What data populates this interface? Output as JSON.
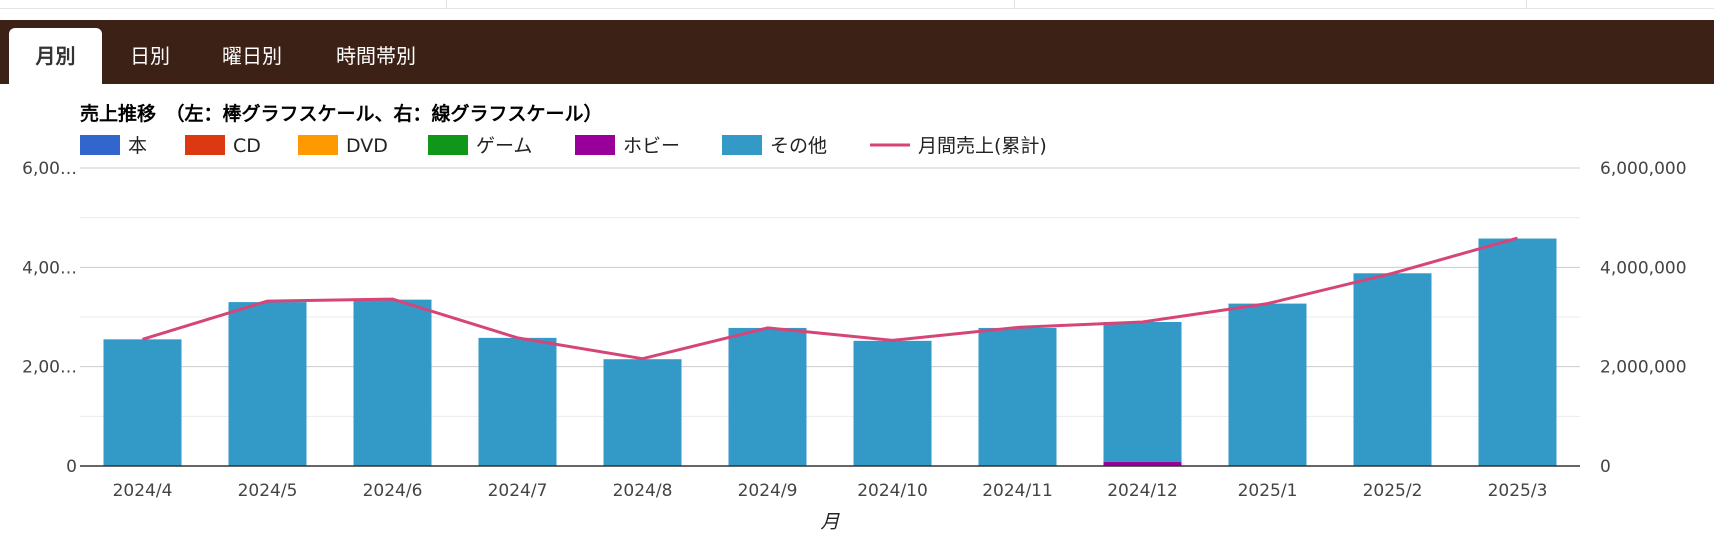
{
  "tabs": [
    {
      "label": "月別",
      "active": true
    },
    {
      "label": "日別",
      "active": false
    },
    {
      "label": "曜日別",
      "active": false
    },
    {
      "label": "時間帯別",
      "active": false
    }
  ],
  "chart_data": {
    "type": "bar",
    "title": "売上推移　（左：棒グラフスケール、右：線グラフスケール）",
    "stacked": true,
    "xlabel": "月",
    "categories": [
      "2024/4",
      "2024/5",
      "2024/6",
      "2024/7",
      "2024/8",
      "2024/9",
      "2024/10",
      "2024/11",
      "2024/12",
      "2025/1",
      "2025/2",
      "2025/3"
    ],
    "series": [
      {
        "name": "本",
        "type": "bar",
        "color": "#3366cc",
        "values": [
          0,
          0,
          0,
          0,
          0,
          0,
          0,
          0,
          0,
          0,
          0,
          0
        ]
      },
      {
        "name": "CD",
        "type": "bar",
        "color": "#dc3912",
        "values": [
          0,
          0,
          0,
          0,
          0,
          0,
          0,
          0,
          0,
          0,
          0,
          0
        ]
      },
      {
        "name": "DVD",
        "type": "bar",
        "color": "#ff9900",
        "values": [
          0,
          0,
          0,
          0,
          0,
          0,
          0,
          0,
          0,
          0,
          0,
          0
        ]
      },
      {
        "name": "ゲーム",
        "type": "bar",
        "color": "#109618",
        "values": [
          0,
          0,
          0,
          0,
          0,
          0,
          0,
          0,
          0,
          0,
          0,
          0
        ]
      },
      {
        "name": "ホビー",
        "type": "bar",
        "color": "#990099",
        "values": [
          0,
          0,
          0,
          0,
          0,
          0,
          0,
          0,
          80000,
          0,
          0,
          0
        ]
      },
      {
        "name": "その他",
        "type": "bar",
        "color": "#3399c6",
        "values": [
          2550000,
          3300000,
          3350000,
          2580000,
          2150000,
          2780000,
          2520000,
          2780000,
          2820000,
          3270000,
          3880000,
          4580000
        ]
      },
      {
        "name": "月間売上(累計)",
        "type": "line",
        "axis": "right",
        "color": "#d6457a",
        "values": [
          2550000,
          3320000,
          3360000,
          2580000,
          2160000,
          2780000,
          2530000,
          2790000,
          2900000,
          3270000,
          3880000,
          4590000
        ]
      }
    ],
    "y_left": {
      "ticks": [
        "0",
        "2,00…",
        "4,00…",
        "6,00…"
      ],
      "range": [
        0,
        6000000
      ]
    },
    "y_right": {
      "ticks": [
        "0",
        "2,000,000",
        "4,000,000",
        "6,000,000"
      ],
      "range": [
        0,
        6000000
      ]
    },
    "legend_position": "top",
    "grid": true
  }
}
